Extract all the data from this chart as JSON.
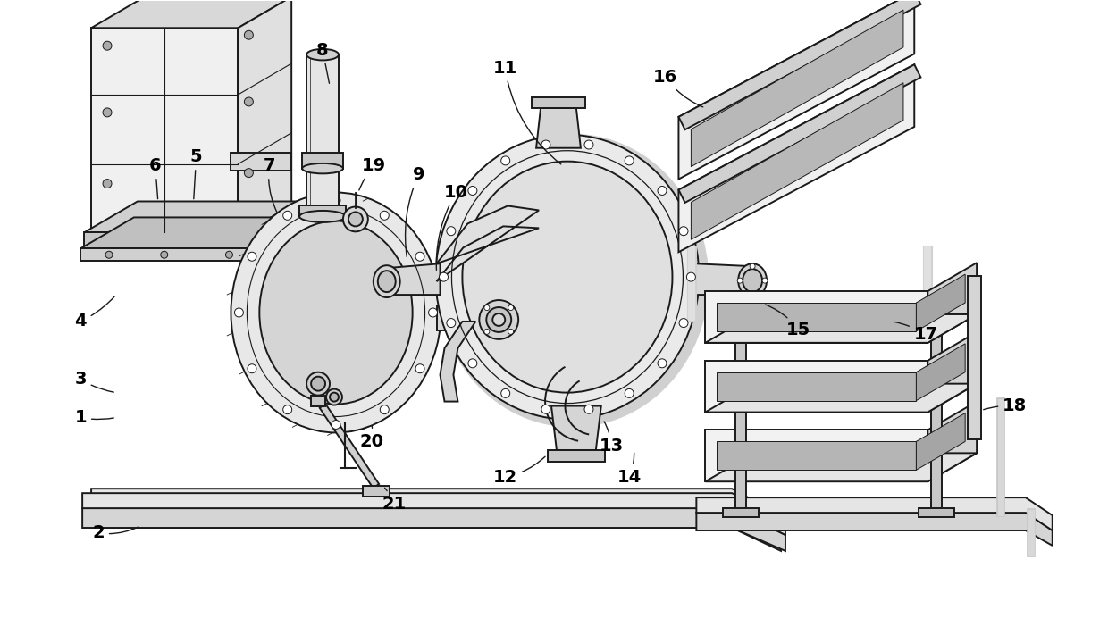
{
  "background_color": "#ffffff",
  "line_color": "#1a1a1a",
  "fig_width": 12.4,
  "fig_height": 6.92,
  "dpi": 100,
  "label_fontsize": 14,
  "label_configs": [
    [
      "1",
      88,
      468,
      128,
      468,
      0.1
    ],
    [
      "2",
      108,
      598,
      155,
      590,
      0.15
    ],
    [
      "3",
      88,
      425,
      128,
      440,
      0.1
    ],
    [
      "4",
      88,
      360,
      128,
      330,
      0.1
    ],
    [
      "5",
      218,
      175,
      215,
      225,
      0.0
    ],
    [
      "6",
      172,
      185,
      175,
      225,
      0.0
    ],
    [
      "7",
      300,
      185,
      310,
      240,
      0.15
    ],
    [
      "8",
      360,
      55,
      368,
      95,
      0.0
    ],
    [
      "9",
      468,
      195,
      455,
      290,
      0.15
    ],
    [
      "10",
      510,
      215,
      488,
      305,
      0.15
    ],
    [
      "11",
      565,
      75,
      630,
      185,
      0.2
    ],
    [
      "12",
      565,
      535,
      612,
      510,
      0.15
    ],
    [
      "13",
      685,
      500,
      675,
      470,
      0.1
    ],
    [
      "14",
      705,
      535,
      710,
      505,
      0.1
    ],
    [
      "15",
      895,
      370,
      855,
      340,
      0.15
    ],
    [
      "16",
      745,
      85,
      790,
      120,
      0.15
    ],
    [
      "17",
      1038,
      375,
      1000,
      360,
      0.1
    ],
    [
      "18",
      1138,
      455,
      1100,
      460,
      0.1
    ],
    [
      "19",
      418,
      185,
      400,
      215,
      0.1
    ],
    [
      "20",
      415,
      495,
      415,
      475,
      0.1
    ],
    [
      "21",
      440,
      565,
      428,
      545,
      0.1
    ]
  ]
}
